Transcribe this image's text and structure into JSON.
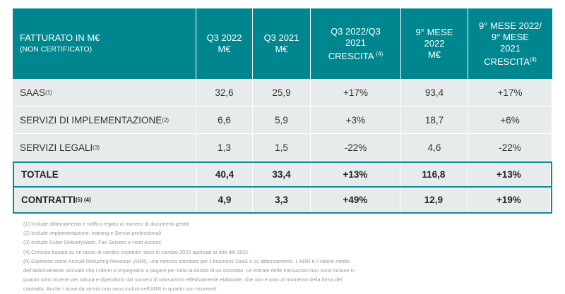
{
  "header": {
    "col0_title": "FATTURATO IN M€",
    "col0_sub": "(NON CERTIFICATO)",
    "cols": [
      {
        "l1": "Q3 2022",
        "l2": "M€",
        "sup": ""
      },
      {
        "l1": "Q3 2021",
        "l2": "M€",
        "sup": ""
      },
      {
        "l1": "Q3 2022/Q3",
        "l2": "2021",
        "l3": "CRESCITA",
        "sup": "(4)"
      },
      {
        "l1": "9° MESE",
        "l2": "2022",
        "l3": "M€",
        "sup": ""
      },
      {
        "l1": "9° MESE 2022/",
        "l2": "9° MESE",
        "l3": "2021",
        "l4": "CRESCITA",
        "sup": "(4)"
      }
    ]
  },
  "rows": [
    {
      "label": "SAAS",
      "sup": "(1)",
      "values": [
        "32,6",
        "25,9",
        "+17%",
        "93,4",
        "+17%"
      ]
    },
    {
      "label": "SERVIZI DI IMPLEMENTAZIONE",
      "sup": "(2)",
      "values": [
        "6,6",
        "5,9",
        "+3%",
        "18,7",
        "+6%"
      ]
    },
    {
      "label": "SERVIZI LEGALI",
      "sup": "(3)",
      "values": [
        "1,3",
        "1,5",
        "-22%",
        "4,6",
        "-22%"
      ]
    },
    {
      "label": "TOTALE",
      "sup": "",
      "values": [
        "40,4",
        "33,4",
        "+13%",
        "116,8",
        "+13%"
      ]
    },
    {
      "label": "CONTRATTI",
      "sup": "(5) (4)",
      "values": [
        "4,9",
        "3,3",
        "+49%",
        "12,9",
        "+19%"
      ]
    }
  ],
  "footnotes": [
    "(1) Include abbonamento e traffico legato al numero di documenti gestiti",
    "(2) Include implementazione, training e Servizi professionali",
    "(3) Include Esker DeliveryWare, Fax Servers e Host Access",
    "(4) Crescita basata su un tasso di cambio costante: tassi di cambio 2022 applicati ai dati del 2021",
    "(5) Espresso come Annual Recurring Revenue (ARR), una metrica standard per il business SaaS o su abbonamento. L'ARR è il valore medio dell'abbonamento annuale che i clienti si impegnano a pagare per tutta la durata di un contratto. Le entrate delle transazioni non sono incluse in quanto sono incerte per natura e dipendono dal numero di transazioni effettivamente elaborate, che non è noto al momento della firma del contratto. Anche i ricavi da servizi non sono inclusi nell'ARR in quanto non ricorrenti."
  ],
  "colors": {
    "header_bg": "#00868f",
    "row_bg": "#e8ebeb",
    "highlight_border": "#0d8b94"
  }
}
